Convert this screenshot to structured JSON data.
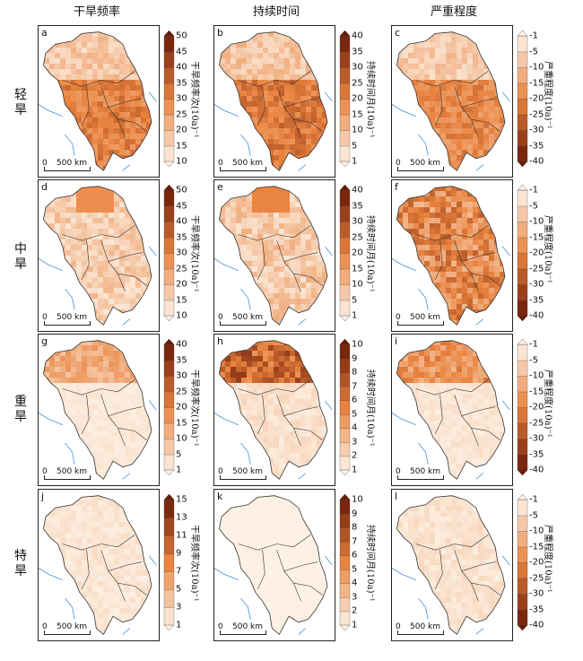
{
  "columns": [
    "干旱频率",
    "持续时间",
    "严重程度"
  ],
  "rows": [
    "轻旱",
    "中旱",
    "重旱",
    "特旱"
  ],
  "scale_bar": {
    "zero": "0",
    "distance": "500 km"
  },
  "colorbar_labels": {
    "frequency": "干旱频率次(10a)⁻¹",
    "duration": "持续时间月(10a)⁻¹",
    "severity": "严重程度(10a)⁻¹"
  },
  "panels": [
    {
      "letter": "a",
      "col": 0,
      "row": 0,
      "ticks": [
        "10",
        "15",
        "20",
        "25",
        "30",
        "35",
        "40",
        "45",
        "50"
      ],
      "pattern": "south-heavy",
      "maxLevel": 0.7
    },
    {
      "letter": "b",
      "col": 1,
      "row": 0,
      "ticks": [
        "1",
        "5",
        "10",
        "15",
        "20",
        "25",
        "30",
        "35",
        "40"
      ],
      "pattern": "south-heavy",
      "maxLevel": 0.75
    },
    {
      "letter": "c",
      "col": 2,
      "row": 0,
      "ticks": [
        "-40",
        "-35",
        "-30",
        "-25",
        "-20",
        "-15",
        "-10",
        "-5",
        "-1"
      ],
      "pattern": "south-heavy",
      "maxLevel": 0.65
    },
    {
      "letter": "d",
      "col": 0,
      "row": 1,
      "ticks": [
        "10",
        "15",
        "20",
        "25",
        "30",
        "35",
        "40",
        "45",
        "50"
      ],
      "pattern": "mixed",
      "maxLevel": 0.5
    },
    {
      "letter": "e",
      "col": 1,
      "row": 1,
      "ticks": [
        "1",
        "5",
        "10",
        "15",
        "20",
        "25",
        "30",
        "35",
        "40"
      ],
      "pattern": "mixed",
      "maxLevel": 0.55
    },
    {
      "letter": "f",
      "col": 2,
      "row": 1,
      "ticks": [
        "-40",
        "-35",
        "-30",
        "-25",
        "-20",
        "-15",
        "-10",
        "-5",
        "-1"
      ],
      "pattern": "all-heavy",
      "maxLevel": 0.75
    },
    {
      "letter": "g",
      "col": 0,
      "row": 2,
      "ticks": [
        "1",
        "5",
        "10",
        "15",
        "20",
        "25",
        "30",
        "35",
        "40"
      ],
      "pattern": "north-heavy",
      "maxLevel": 0.45
    },
    {
      "letter": "h",
      "col": 1,
      "row": 2,
      "ticks": [
        "1",
        "2",
        "3",
        "4",
        "5",
        "6",
        "7",
        "8",
        "9",
        "10"
      ],
      "pattern": "north-heavy",
      "maxLevel": 0.9
    },
    {
      "letter": "i",
      "col": 2,
      "row": 2,
      "ticks": [
        "-40",
        "-35",
        "-30",
        "-25",
        "-20",
        "-15",
        "-10",
        "-5",
        "-1"
      ],
      "pattern": "north-heavy",
      "maxLevel": 0.6
    },
    {
      "letter": "j",
      "col": 0,
      "row": 3,
      "ticks": [
        "1",
        "3",
        "5",
        "7",
        "9",
        "11",
        "13",
        "15"
      ],
      "pattern": "light",
      "maxLevel": 0.25
    },
    {
      "letter": "k",
      "col": 1,
      "row": 3,
      "ticks": [
        "1",
        "2",
        "3",
        "4",
        "5",
        "6",
        "7",
        "8",
        "9",
        "10"
      ],
      "pattern": "faint",
      "maxLevel": 0.08
    },
    {
      "letter": "l",
      "col": 2,
      "row": 3,
      "ticks": [
        "-40",
        "-35",
        "-30",
        "-25",
        "-20",
        "-15",
        "-10",
        "-5",
        "-1"
      ],
      "pattern": "light",
      "maxLevel": 0.3
    }
  ],
  "colors": {
    "low": "#fdf2e6",
    "mid": "#e9833f",
    "high": "#6b1a07",
    "river": "#4a90d9",
    "border": "#333333"
  }
}
